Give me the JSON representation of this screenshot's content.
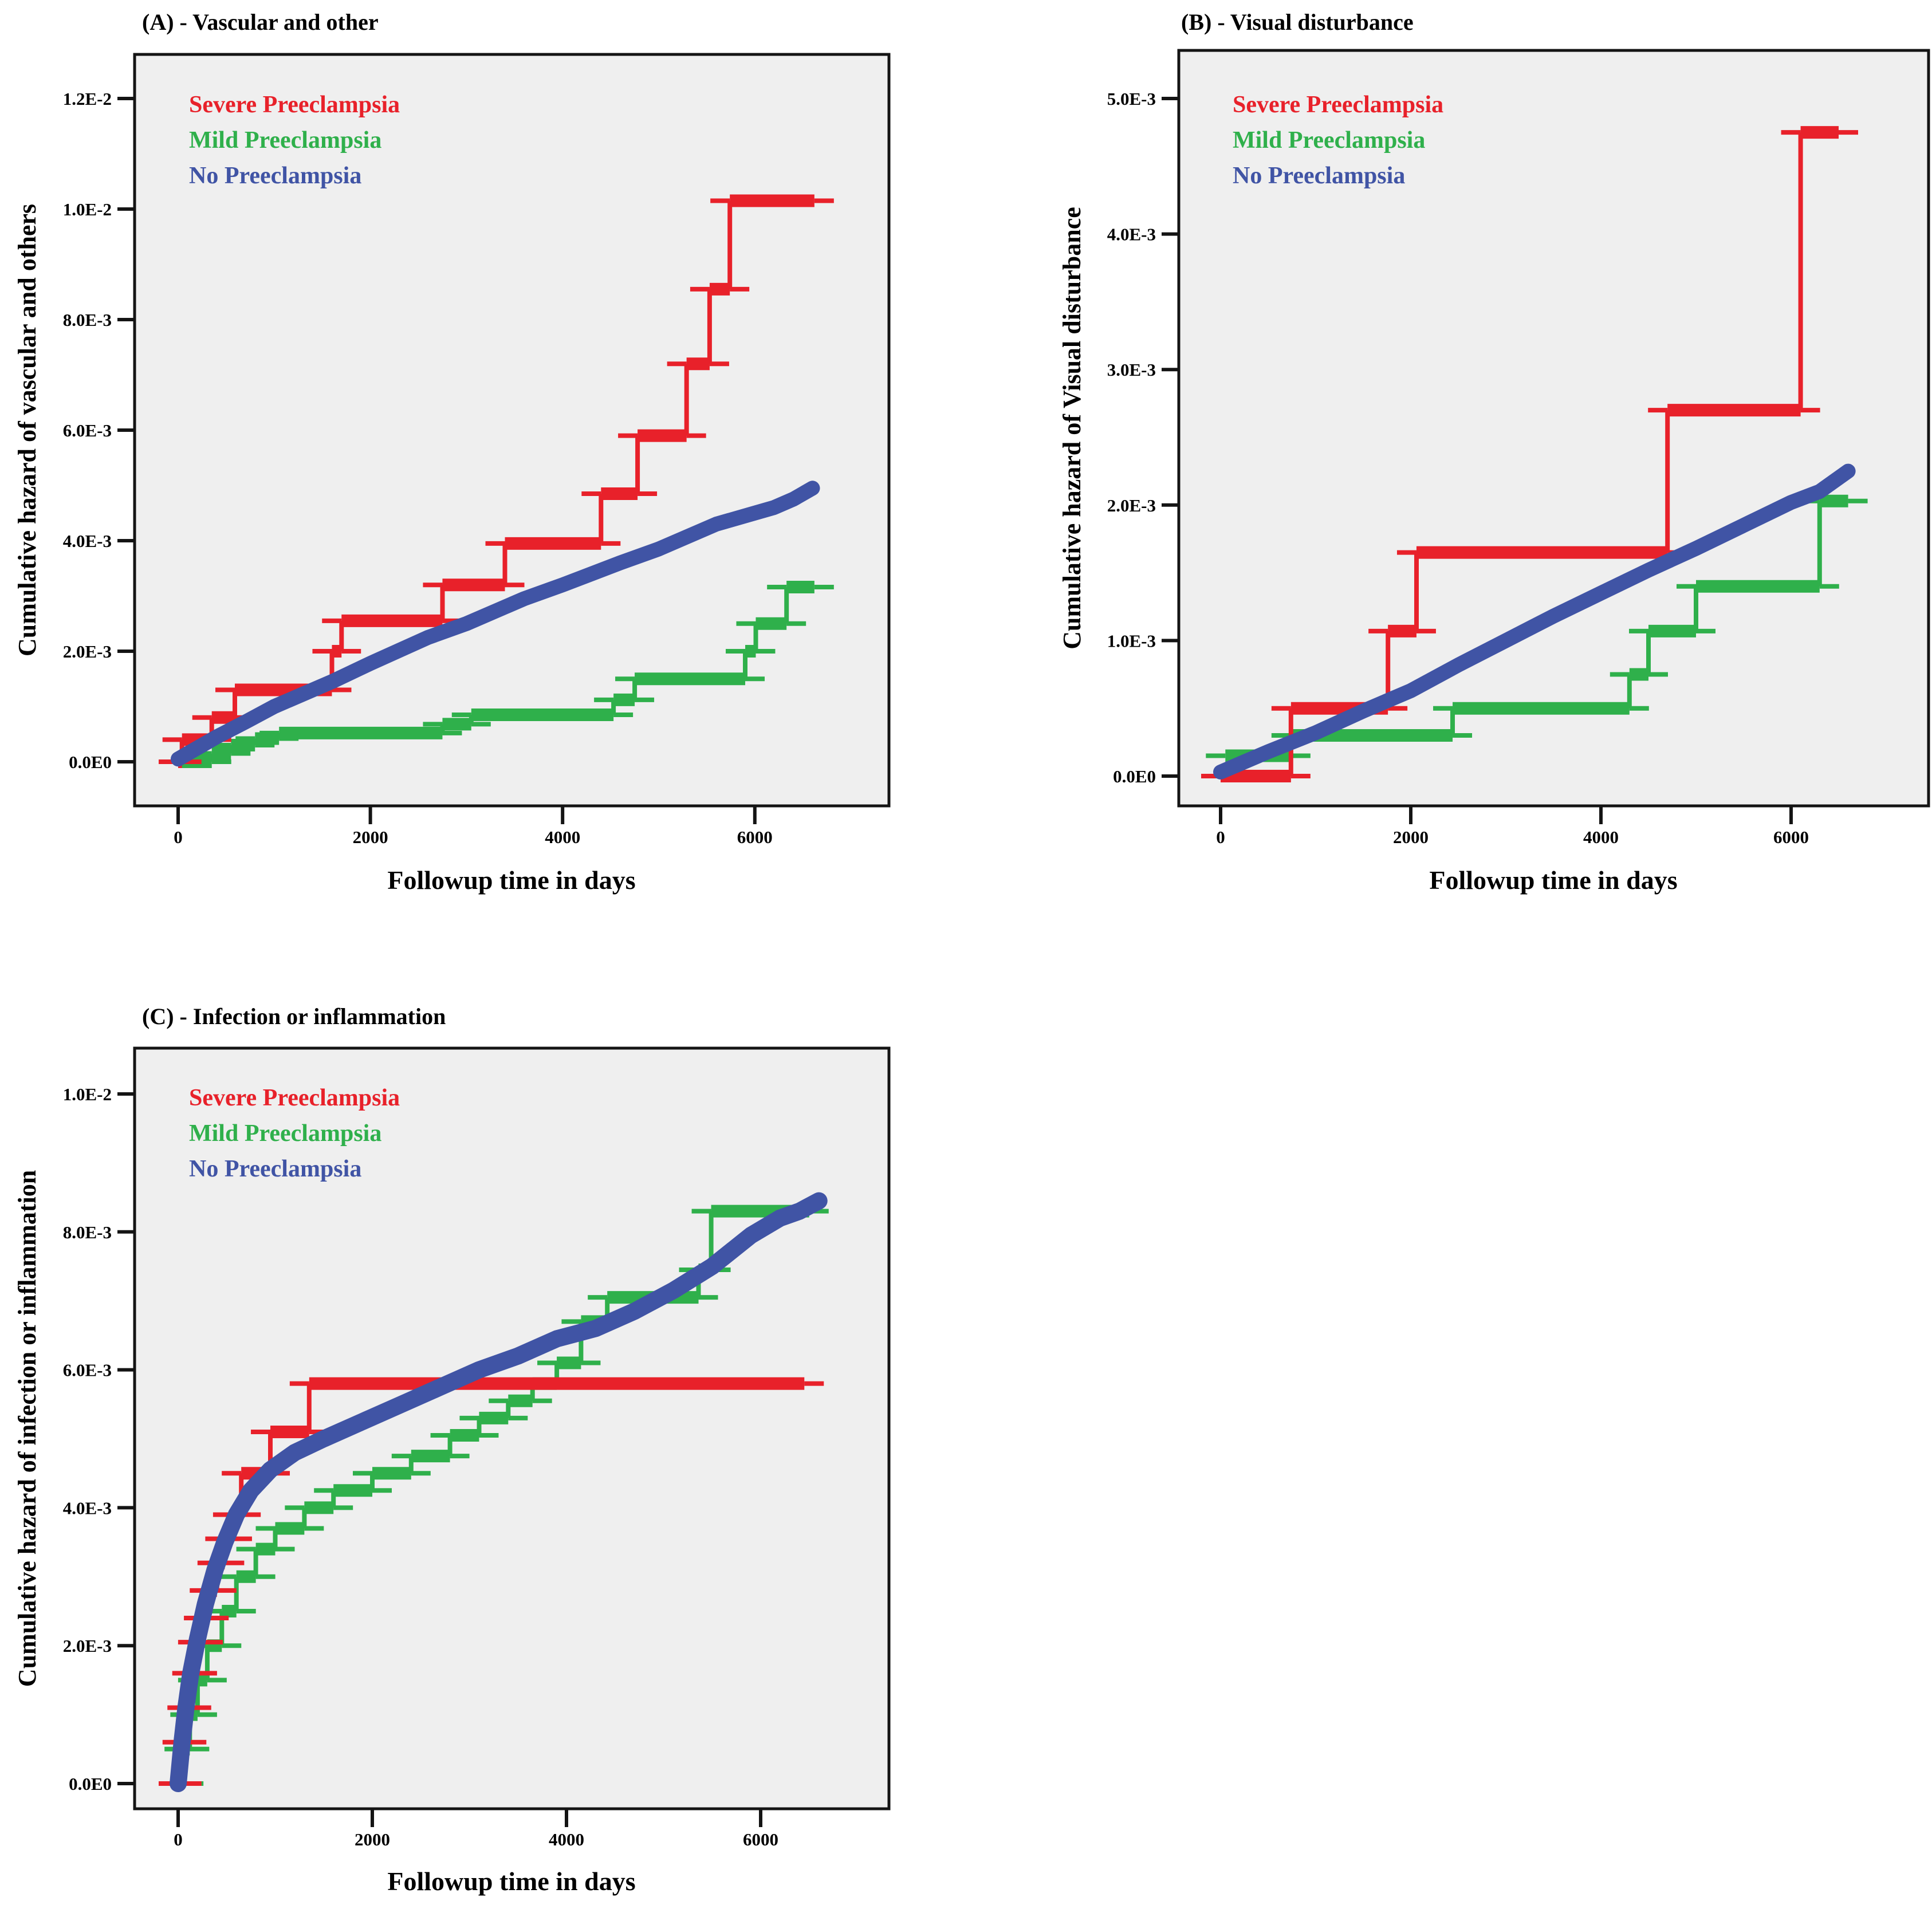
{
  "figure": {
    "description": "Three cumulative hazard plots comparing preeclampsia severity groups",
    "background": "#ffffff"
  },
  "colors": {
    "severe": "#e8212a",
    "mild": "#2fb04b",
    "none": "#4054a5",
    "plot_bg": "#efefef",
    "frame": "#141414",
    "text": "#000000"
  },
  "legend_labels": [
    "Severe Preeclampsia",
    "Mild Preeclampsia",
    "No Preeclampsia"
  ],
  "x_axis_label": "Followup time in days",
  "chart_data": [
    {
      "id": "A",
      "type": "line",
      "title": "(A) - Vascular and other",
      "ylabel": "Cumulative hazard of vascular and others",
      "xlabel": "Followup time in days",
      "value_unit": "1e-3",
      "xlim": [
        0,
        7400
      ],
      "ylim_e3": [
        0,
        13.2
      ],
      "grid": false,
      "legend_position": "top-left-inside",
      "y_ticks": [
        {
          "value_e3": 12,
          "label": "1.2E-2"
        },
        {
          "value_e3": 10,
          "label": "1.0E-2"
        },
        {
          "value_e3": 8,
          "label": "8.0E-3"
        },
        {
          "value_e3": 6,
          "label": "6.0E-3"
        },
        {
          "value_e3": 4,
          "label": "4.0E-3"
        },
        {
          "value_e3": 2,
          "label": "2.0E-3"
        },
        {
          "value_e3": 0,
          "label": "0.0E0"
        }
      ],
      "x_ticks": [
        {
          "value": 0,
          "label": "0"
        },
        {
          "value": 2000,
          "label": "2000"
        },
        {
          "value": 4000,
          "label": "4000"
        },
        {
          "value": 6000,
          "label": "6000"
        }
      ],
      "series": [
        {
          "name": "Severe Preeclampsia",
          "color_key": "severe",
          "style": "step",
          "points_e3": [
            [
              0,
              0
            ],
            [
              40,
              0.4
            ],
            [
              350,
              0.8
            ],
            [
              590,
              1.3
            ],
            [
              1600,
              2.0
            ],
            [
              1700,
              2.55
            ],
            [
              2750,
              3.2
            ],
            [
              3400,
              3.95
            ],
            [
              4400,
              4.85
            ],
            [
              4780,
              5.9
            ],
            [
              5290,
              7.2
            ],
            [
              5530,
              8.55
            ],
            [
              5740,
              10.15
            ],
            [
              6620,
              10.15
            ]
          ]
        },
        {
          "name": "Mild Preeclampsia",
          "color_key": "mild",
          "style": "step",
          "points_e3": [
            [
              0,
              0
            ],
            [
              350,
              0.15
            ],
            [
              550,
              0.3
            ],
            [
              800,
              0.42
            ],
            [
              1050,
              0.52
            ],
            [
              2750,
              0.68
            ],
            [
              3050,
              0.85
            ],
            [
              4530,
              1.12
            ],
            [
              4750,
              1.5
            ],
            [
              5900,
              2.0
            ],
            [
              6010,
              2.5
            ],
            [
              6330,
              3.16
            ],
            [
              6620,
              3.16
            ]
          ]
        },
        {
          "name": "No Preeclampsia",
          "color_key": "none",
          "style": "smooth",
          "points_e3": [
            [
              0,
              0.05
            ],
            [
              150,
              0.2
            ],
            [
              400,
              0.45
            ],
            [
              700,
              0.72
            ],
            [
              1000,
              1.0
            ],
            [
              1600,
              1.45
            ],
            [
              2000,
              1.78
            ],
            [
              2600,
              2.25
            ],
            [
              3000,
              2.5
            ],
            [
              3600,
              2.95
            ],
            [
              4000,
              3.2
            ],
            [
              4600,
              3.6
            ],
            [
              5000,
              3.85
            ],
            [
              5600,
              4.3
            ],
            [
              6000,
              4.5
            ],
            [
              6200,
              4.6
            ],
            [
              6400,
              4.75
            ],
            [
              6600,
              4.95
            ]
          ]
        }
      ]
    },
    {
      "id": "B",
      "type": "line",
      "title": "(B) - Visual disturbance",
      "ylabel": "Cumulative hazard of Visual disturbance",
      "xlabel": "Followup time in days",
      "value_unit": "1e-3",
      "xlim": [
        0,
        7400
      ],
      "ylim_e3": [
        0,
        5.4
      ],
      "grid": false,
      "legend_position": "top-left-inside",
      "y_ticks": [
        {
          "value_e3": 5,
          "label": "5.0E-3"
        },
        {
          "value_e3": 4,
          "label": "4.0E-3"
        },
        {
          "value_e3": 3,
          "label": "3.0E-3"
        },
        {
          "value_e3": 2,
          "label": "2.0E-3"
        },
        {
          "value_e3": 1,
          "label": "1.0E-3"
        },
        {
          "value_e3": 0,
          "label": "0.0E0"
        }
      ],
      "x_ticks": [
        {
          "value": 0,
          "label": "0"
        },
        {
          "value": 2000,
          "label": "2000"
        },
        {
          "value": 4000,
          "label": "4000"
        },
        {
          "value": 6000,
          "label": "6000"
        }
      ],
      "series": [
        {
          "name": "Severe Preeclampsia",
          "color_key": "severe",
          "style": "step",
          "points_e3": [
            [
              0,
              0
            ],
            [
              740,
              0.5
            ],
            [
              1760,
              1.07
            ],
            [
              2060,
              1.65
            ],
            [
              4700,
              2.7
            ],
            [
              6100,
              4.75
            ],
            [
              6500,
              4.75
            ]
          ]
        },
        {
          "name": "Mild Preeclampsia",
          "color_key": "mild",
          "style": "step",
          "points_e3": [
            [
              50,
              0.15
            ],
            [
              740,
              0.3
            ],
            [
              2440,
              0.5
            ],
            [
              4300,
              0.75
            ],
            [
              4500,
              1.07
            ],
            [
              5000,
              1.4
            ],
            [
              6300,
              2.03
            ],
            [
              6600,
              2.03
            ]
          ]
        },
        {
          "name": "No Preeclampsia",
          "color_key": "none",
          "style": "smooth",
          "points_e3": [
            [
              0,
              0.03
            ],
            [
              500,
              0.18
            ],
            [
              1000,
              0.32
            ],
            [
              1500,
              0.48
            ],
            [
              2000,
              0.63
            ],
            [
              2500,
              0.82
            ],
            [
              3000,
              1.0
            ],
            [
              3500,
              1.18
            ],
            [
              4000,
              1.35
            ],
            [
              4500,
              1.52
            ],
            [
              5000,
              1.68
            ],
            [
              5500,
              1.85
            ],
            [
              6000,
              2.02
            ],
            [
              6300,
              2.1
            ],
            [
              6600,
              2.25
            ]
          ]
        }
      ]
    },
    {
      "id": "C",
      "type": "line",
      "title": "(C) - Infection or inflammation",
      "ylabel": "Cumulative hazard of infection or inflammation",
      "xlabel": "Followup time in days",
      "value_unit": "1e-3",
      "xlim": [
        0,
        7400
      ],
      "ylim_e3": [
        0,
        10.8
      ],
      "grid": false,
      "legend_position": "top-left-inside",
      "y_ticks": [
        {
          "value_e3": 10,
          "label": "1.0E-2"
        },
        {
          "value_e3": 8,
          "label": "8.0E-3"
        },
        {
          "value_e3": 6,
          "label": "6.0E-3"
        },
        {
          "value_e3": 4,
          "label": "4.0E-3"
        },
        {
          "value_e3": 2,
          "label": "2.0E-3"
        },
        {
          "value_e3": 0,
          "label": "0.0E0"
        }
      ],
      "x_ticks": [
        {
          "value": 0,
          "label": "0"
        },
        {
          "value": 2000,
          "label": "2000"
        },
        {
          "value": 4000,
          "label": "4000"
        },
        {
          "value": 6000,
          "label": "6000"
        }
      ],
      "series": [
        {
          "name": "Severe Preeclampsia",
          "color_key": "severe",
          "style": "step",
          "points_e3": [
            [
              0,
              0
            ],
            [
              40,
              0.6
            ],
            [
              90,
              1.1
            ],
            [
              140,
              1.6
            ],
            [
              200,
              2.05
            ],
            [
              260,
              2.4
            ],
            [
              320,
              2.8
            ],
            [
              400,
              3.2
            ],
            [
              480,
              3.55
            ],
            [
              560,
              3.9
            ],
            [
              650,
              4.5
            ],
            [
              950,
              5.1
            ],
            [
              1350,
              5.8
            ],
            [
              6450,
              5.8
            ]
          ]
        },
        {
          "name": "Mild Preeclampsia",
          "color_key": "mild",
          "style": "step",
          "points_e3": [
            [
              0,
              0
            ],
            [
              60,
              0.5
            ],
            [
              120,
              1.0
            ],
            [
              200,
              1.5
            ],
            [
              300,
              2.0
            ],
            [
              450,
              2.5
            ],
            [
              600,
              3.0
            ],
            [
              800,
              3.4
            ],
            [
              1000,
              3.7
            ],
            [
              1300,
              4.0
            ],
            [
              1600,
              4.25
            ],
            [
              2000,
              4.5
            ],
            [
              2400,
              4.75
            ],
            [
              2800,
              5.05
            ],
            [
              3100,
              5.3
            ],
            [
              3400,
              5.55
            ],
            [
              3650,
              5.8
            ],
            [
              3900,
              6.1
            ],
            [
              4150,
              6.7
            ],
            [
              4420,
              7.05
            ],
            [
              5360,
              7.45
            ],
            [
              5490,
              8.3
            ],
            [
              6500,
              8.3
            ]
          ]
        },
        {
          "name": "No Preeclampsia",
          "color_key": "none",
          "style": "smooth",
          "points_e3": [
            [
              0,
              0
            ],
            [
              40,
              0.6
            ],
            [
              80,
              1.1
            ],
            [
              130,
              1.6
            ],
            [
              200,
              2.1
            ],
            [
              280,
              2.6
            ],
            [
              380,
              3.1
            ],
            [
              480,
              3.5
            ],
            [
              600,
              3.9
            ],
            [
              750,
              4.25
            ],
            [
              950,
              4.55
            ],
            [
              1200,
              4.8
            ],
            [
              1500,
              5.0
            ],
            [
              1900,
              5.25
            ],
            [
              2300,
              5.5
            ],
            [
              2700,
              5.75
            ],
            [
              3100,
              6.0
            ],
            [
              3500,
              6.2
            ],
            [
              3900,
              6.45
            ],
            [
              4300,
              6.6
            ],
            [
              4700,
              6.85
            ],
            [
              5100,
              7.15
            ],
            [
              5500,
              7.5
            ],
            [
              5900,
              7.95
            ],
            [
              6200,
              8.2
            ],
            [
              6400,
              8.3
            ],
            [
              6600,
              8.45
            ]
          ]
        }
      ]
    }
  ]
}
